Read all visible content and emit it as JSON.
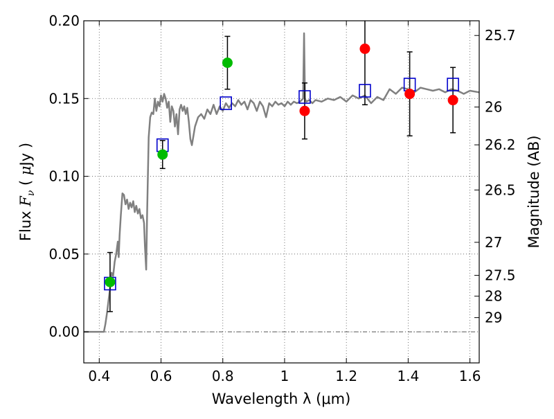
{
  "chart_data": {
    "type": "scatter",
    "xlabel": "Wavelength  λ (μm)",
    "ylabel": "Flux  F_ν  ( μJy )",
    "ylabel_right": "Magnitude (AB)",
    "xlim": [
      0.35,
      1.63
    ],
    "ylim": [
      -0.02,
      0.2
    ],
    "grid": true,
    "x_ticks": [
      {
        "value": 0.4,
        "label": "0.4"
      },
      {
        "value": 0.6,
        "label": "0.6"
      },
      {
        "value": 0.8,
        "label": "0.8"
      },
      {
        "value": 1.0,
        "label": "1"
      },
      {
        "value": 1.2,
        "label": "1.2"
      },
      {
        "value": 1.4,
        "label": "1.4"
      },
      {
        "value": 1.6,
        "label": "1.6"
      }
    ],
    "y_ticks": [
      {
        "value": 0.0,
        "label": "0.00"
      },
      {
        "value": 0.05,
        "label": "0.05"
      },
      {
        "value": 0.1,
        "label": "0.10"
      },
      {
        "value": 0.15,
        "label": "0.15"
      },
      {
        "value": 0.2,
        "label": "0.20"
      }
    ],
    "mag_ticks": [
      {
        "mag": 25.7,
        "label": "25.7"
      },
      {
        "mag": 26,
        "label": "26"
      },
      {
        "mag": 26.2,
        "label": "26.2"
      },
      {
        "mag": 26.5,
        "label": "26.5"
      },
      {
        "mag": 27,
        "label": "27"
      },
      {
        "mag": 27.5,
        "label": "27.5"
      },
      {
        "mag": 28,
        "label": "28"
      },
      {
        "mag": 29,
        "label": "29"
      }
    ],
    "colors": {
      "model": "#808080",
      "green": "#00bb00",
      "red": "#ff0000",
      "square": "#0000cc",
      "errorbar": "#000000",
      "grid": "#555555"
    },
    "model_spectrum": [
      [
        0.35,
        0.0
      ],
      [
        0.4,
        0.0
      ],
      [
        0.415,
        0.0
      ],
      [
        0.42,
        0.005
      ],
      [
        0.425,
        0.012
      ],
      [
        0.43,
        0.02
      ],
      [
        0.435,
        0.028
      ],
      [
        0.44,
        0.038
      ],
      [
        0.445,
        0.036
      ],
      [
        0.45,
        0.045
      ],
      [
        0.455,
        0.05
      ],
      [
        0.46,
        0.058
      ],
      [
        0.463,
        0.048
      ],
      [
        0.466,
        0.062
      ],
      [
        0.47,
        0.075
      ],
      [
        0.475,
        0.089
      ],
      [
        0.48,
        0.088
      ],
      [
        0.485,
        0.082
      ],
      [
        0.49,
        0.085
      ],
      [
        0.495,
        0.079
      ],
      [
        0.5,
        0.083
      ],
      [
        0.505,
        0.08
      ],
      [
        0.51,
        0.084
      ],
      [
        0.515,
        0.077
      ],
      [
        0.52,
        0.081
      ],
      [
        0.525,
        0.076
      ],
      [
        0.53,
        0.079
      ],
      [
        0.535,
        0.073
      ],
      [
        0.54,
        0.075
      ],
      [
        0.545,
        0.07
      ],
      [
        0.548,
        0.055
      ],
      [
        0.552,
        0.04
      ],
      [
        0.555,
        0.075
      ],
      [
        0.56,
        0.125
      ],
      [
        0.565,
        0.138
      ],
      [
        0.57,
        0.141
      ],
      [
        0.575,
        0.14
      ],
      [
        0.58,
        0.15
      ],
      [
        0.585,
        0.142
      ],
      [
        0.59,
        0.148
      ],
      [
        0.595,
        0.145
      ],
      [
        0.6,
        0.152
      ],
      [
        0.605,
        0.148
      ],
      [
        0.61,
        0.153
      ],
      [
        0.615,
        0.15
      ],
      [
        0.62,
        0.144
      ],
      [
        0.625,
        0.148
      ],
      [
        0.63,
        0.135
      ],
      [
        0.635,
        0.145
      ],
      [
        0.64,
        0.142
      ],
      [
        0.645,
        0.132
      ],
      [
        0.65,
        0.14
      ],
      [
        0.655,
        0.127
      ],
      [
        0.66,
        0.143
      ],
      [
        0.665,
        0.146
      ],
      [
        0.67,
        0.142
      ],
      [
        0.675,
        0.145
      ],
      [
        0.68,
        0.14
      ],
      [
        0.685,
        0.144
      ],
      [
        0.69,
        0.135
      ],
      [
        0.695,
        0.124
      ],
      [
        0.7,
        0.12
      ],
      [
        0.71,
        0.132
      ],
      [
        0.72,
        0.138
      ],
      [
        0.73,
        0.14
      ],
      [
        0.74,
        0.137
      ],
      [
        0.75,
        0.143
      ],
      [
        0.76,
        0.14
      ],
      [
        0.77,
        0.146
      ],
      [
        0.78,
        0.14
      ],
      [
        0.79,
        0.145
      ],
      [
        0.8,
        0.142
      ],
      [
        0.81,
        0.147
      ],
      [
        0.82,
        0.144
      ],
      [
        0.83,
        0.147
      ],
      [
        0.84,
        0.145
      ],
      [
        0.85,
        0.149
      ],
      [
        0.86,
        0.146
      ],
      [
        0.87,
        0.148
      ],
      [
        0.88,
        0.143
      ],
      [
        0.89,
        0.149
      ],
      [
        0.9,
        0.147
      ],
      [
        0.91,
        0.142
      ],
      [
        0.92,
        0.148
      ],
      [
        0.93,
        0.145
      ],
      [
        0.94,
        0.138
      ],
      [
        0.95,
        0.147
      ],
      [
        0.96,
        0.145
      ],
      [
        0.97,
        0.148
      ],
      [
        0.98,
        0.146
      ],
      [
        0.99,
        0.147
      ],
      [
        1.0,
        0.145
      ],
      [
        1.01,
        0.148
      ],
      [
        1.02,
        0.146
      ],
      [
        1.03,
        0.148
      ],
      [
        1.04,
        0.147
      ],
      [
        1.05,
        0.148
      ],
      [
        1.06,
        0.15
      ],
      [
        1.063,
        0.192
      ],
      [
        1.066,
        0.15
      ],
      [
        1.07,
        0.148
      ],
      [
        1.08,
        0.149
      ],
      [
        1.09,
        0.147
      ],
      [
        1.1,
        0.149
      ],
      [
        1.12,
        0.148
      ],
      [
        1.14,
        0.15
      ],
      [
        1.16,
        0.149
      ],
      [
        1.18,
        0.151
      ],
      [
        1.2,
        0.148
      ],
      [
        1.22,
        0.152
      ],
      [
        1.24,
        0.15
      ],
      [
        1.26,
        0.152
      ],
      [
        1.28,
        0.147
      ],
      [
        1.3,
        0.151
      ],
      [
        1.32,
        0.149
      ],
      [
        1.34,
        0.156
      ],
      [
        1.36,
        0.153
      ],
      [
        1.38,
        0.157
      ],
      [
        1.4,
        0.156
      ],
      [
        1.42,
        0.154
      ],
      [
        1.44,
        0.157
      ],
      [
        1.46,
        0.156
      ],
      [
        1.48,
        0.155
      ],
      [
        1.5,
        0.156
      ],
      [
        1.52,
        0.154
      ],
      [
        1.54,
        0.156
      ],
      [
        1.56,
        0.155
      ],
      [
        1.58,
        0.153
      ],
      [
        1.6,
        0.155
      ],
      [
        1.63,
        0.154
      ]
    ],
    "green_points": [
      {
        "x": 0.435,
        "y": 0.032,
        "err": 0.019
      },
      {
        "x": 0.605,
        "y": 0.114,
        "err": 0.009
      },
      {
        "x": 0.815,
        "y": 0.173,
        "err": 0.017
      }
    ],
    "red_points": [
      {
        "x": 1.065,
        "y": 0.142,
        "err": 0.018
      },
      {
        "x": 1.26,
        "y": 0.182,
        "err": 0.036
      },
      {
        "x": 1.405,
        "y": 0.153,
        "err": 0.027
      },
      {
        "x": 1.545,
        "y": 0.149,
        "err": 0.021
      }
    ],
    "model_squares": [
      {
        "x": 0.435,
        "y": 0.031
      },
      {
        "x": 0.605,
        "y": 0.12
      },
      {
        "x": 0.81,
        "y": 0.147
      },
      {
        "x": 1.065,
        "y": 0.151
      },
      {
        "x": 1.26,
        "y": 0.155
      },
      {
        "x": 1.405,
        "y": 0.159
      },
      {
        "x": 1.545,
        "y": 0.159
      }
    ]
  }
}
